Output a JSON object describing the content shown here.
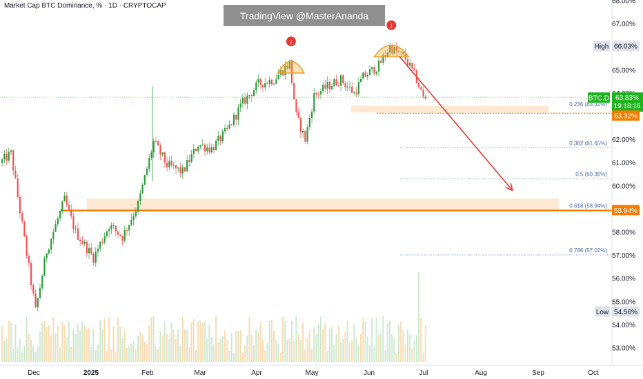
{
  "header": {
    "title": "Market Cap BTC Dominance, % · 1D · CRYPTOCAP",
    "watermark": "TradingView @MasterAnanda"
  },
  "colors": {
    "up": "#26a69a",
    "up_candle": "#2a9d3a",
    "down": "#ef5350",
    "fib_line": "#6f8fc9",
    "orange": "#f57c00",
    "zone": "#fde9d3",
    "current_price_bg": "#1eb31e",
    "arrow": "#e53935"
  },
  "chart_data": {
    "type": "candlestick",
    "symbol": "BTC.D",
    "y_axis": {
      "ticks": [
        "68.00%",
        "67.00%",
        "65.00%",
        "64.00%",
        "62.00%",
        "61.00%",
        "60.00%",
        "58.00%",
        "57.00%",
        "56.00%",
        "55.00%",
        "54.00%",
        "53.00%"
      ],
      "range": [
        52.6,
        68.0
      ],
      "unit": "%"
    },
    "x_axis": {
      "ticks": [
        "Dec",
        "2025",
        "Feb",
        "Mar",
        "Apr",
        "May",
        "Jun",
        "Jul",
        "Aug",
        "Sep",
        "Oct"
      ]
    },
    "price_labels": {
      "high": {
        "label": "High",
        "value": "66.03%"
      },
      "low": {
        "label": "Low",
        "value": "54.56%"
      },
      "current": {
        "symbol": "BTC.D",
        "value": "63.83%",
        "countdown": "19:18:16"
      },
      "orange_level": "63.32%",
      "support_level": "58.94%"
    },
    "fib_levels": [
      {
        "ratio": 0.236,
        "price": 63.32,
        "label": "0.236 (63.32%)"
      },
      {
        "ratio": 0.382,
        "price": 61.65,
        "label": "0.382 (61.65%)"
      },
      {
        "ratio": 0.5,
        "price": 60.3,
        "label": "0.5 (60.30%)"
      },
      {
        "ratio": 0.618,
        "price": 58.94,
        "label": "0.618 (58.94%)"
      },
      {
        "ratio": 0.786,
        "price": 57.02,
        "label": "0.786 (57.02%)"
      }
    ],
    "keypoints": [
      {
        "t": 0,
        "v": 61.0
      },
      {
        "t": 5,
        "v": 61.4
      },
      {
        "t": 10,
        "v": 58.3
      },
      {
        "t": 16,
        "v": 54.6
      },
      {
        "t": 21,
        "v": 57.2
      },
      {
        "t": 29,
        "v": 59.4
      },
      {
        "t": 34,
        "v": 58.0
      },
      {
        "t": 42,
        "v": 56.9
      },
      {
        "t": 49,
        "v": 58.3
      },
      {
        "t": 55,
        "v": 57.8
      },
      {
        "t": 62,
        "v": 59.2
      },
      {
        "t": 69,
        "v": 61.9
      },
      {
        "t": 75,
        "v": 60.9
      },
      {
        "t": 82,
        "v": 60.6
      },
      {
        "t": 89,
        "v": 61.8
      },
      {
        "t": 95,
        "v": 61.6
      },
      {
        "t": 102,
        "v": 62.4
      },
      {
        "t": 109,
        "v": 63.6
      },
      {
        "t": 116,
        "v": 64.4
      },
      {
        "t": 123,
        "v": 64.6
      },
      {
        "t": 130,
        "v": 65.3
      },
      {
        "t": 133,
        "v": 63.0
      },
      {
        "t": 137,
        "v": 62.0
      },
      {
        "t": 141,
        "v": 63.9
      },
      {
        "t": 147,
        "v": 64.3
      },
      {
        "t": 153,
        "v": 64.6
      },
      {
        "t": 159,
        "v": 64.0
      },
      {
        "t": 163,
        "v": 64.7
      },
      {
        "t": 170,
        "v": 65.2
      },
      {
        "t": 175,
        "v": 66.0
      },
      {
        "t": 182,
        "v": 65.5
      },
      {
        "t": 187,
        "v": 64.6
      },
      {
        "t": 190,
        "v": 63.8
      }
    ],
    "candle_count": 191,
    "volume_spike_index": 187,
    "annotations": {
      "head_tops": [
        130,
        175
      ],
      "projection": {
        "from_t": 190,
        "from_v": 65.6,
        "to_t": 222,
        "to_v": 59.8
      }
    }
  }
}
